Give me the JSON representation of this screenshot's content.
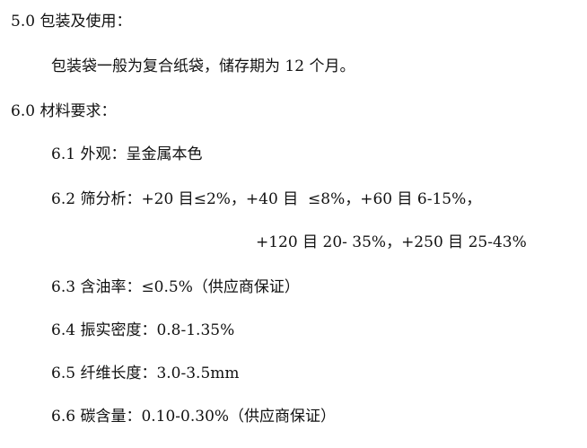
{
  "lines": [
    "5.0 包装及使用：",
    "包装袋一般为复合纸袋，储存期为 12 个月。",
    "6.0 材料要求：",
    "6.1 外观：呈金属本色",
    "6.2 筛分析：+20 目≤2%，+40 目  ≤8%，+60 目 6-15%，",
    "+120 目 20- 35%，+250 目 25-43%",
    "6.3 含油率：≤0.5%（供应商保证）",
    "6.4 振实密度：0.8-1.35%",
    "6.5 纤维长度：3.0-3.5mm",
    "6.6 碳含量：0.10-0.30%（供应商保证）"
  ]
}
